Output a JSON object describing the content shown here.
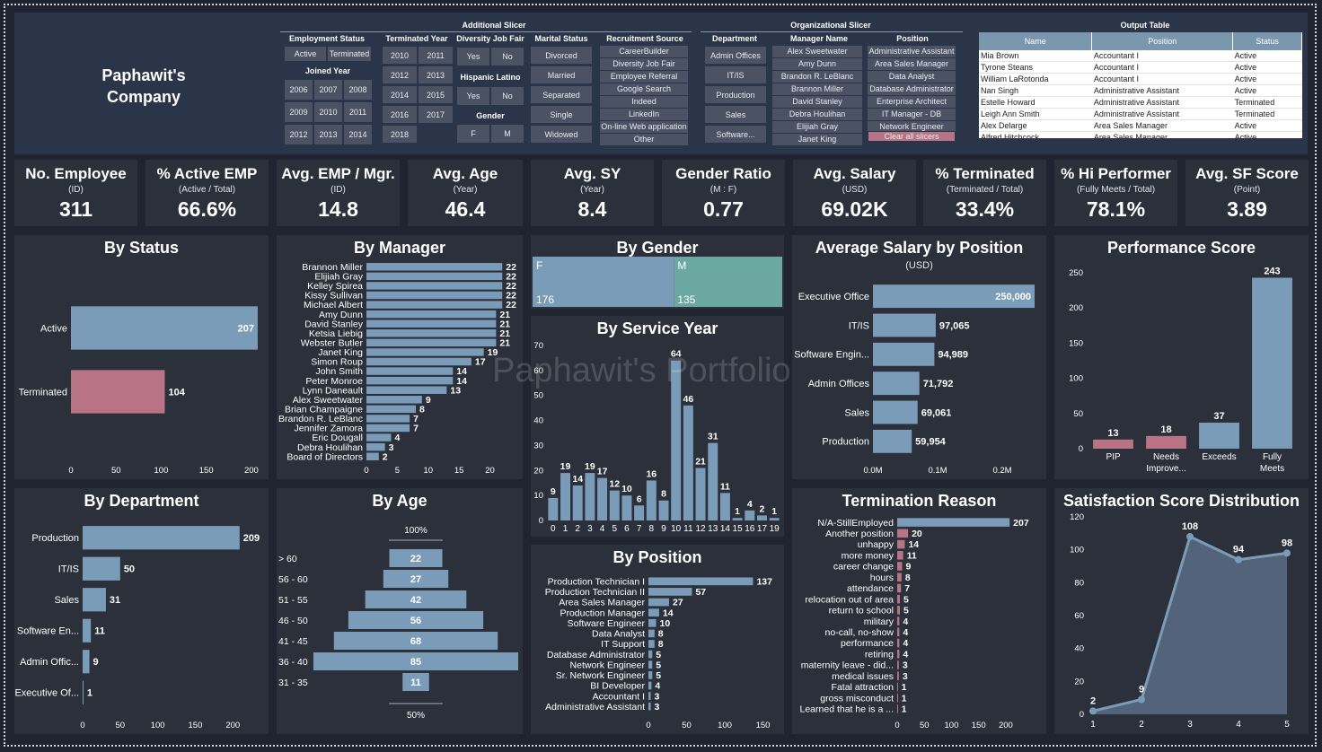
{
  "header": {
    "company": "Paphawit's Company",
    "additional_slicer_title": "Additional Slicer",
    "org_slicer_title": "Organizational Slicer",
    "output_table_title": "Output Table",
    "employment_status": {
      "title": "Employment Status",
      "options": [
        "Active",
        "Terminated"
      ]
    },
    "joined_year": {
      "title": "Joined Year",
      "options": [
        "2006",
        "2007",
        "2008",
        "2009",
        "2010",
        "2011",
        "2012",
        "2013",
        "2014"
      ]
    },
    "terminated_year": {
      "title": "Terminated Year",
      "options": [
        "2010",
        "2011",
        "2012",
        "2013",
        "2014",
        "2015",
        "2016",
        "2017",
        "2018"
      ]
    },
    "diversity_job_fair": {
      "title": "Diversity Job Fair",
      "options": [
        "Yes",
        "No"
      ]
    },
    "hispanic_latino": {
      "title": "Hispanic Latino",
      "options": [
        "Yes",
        "No"
      ]
    },
    "gender": {
      "title": "Gender",
      "options": [
        "F",
        "M"
      ]
    },
    "marital_status": {
      "title": "Marital Status",
      "options": [
        "Divorced",
        "Married",
        "Separated",
        "Single",
        "Widowed"
      ]
    },
    "recruitment_source": {
      "title": "Recruitment Source",
      "options": [
        "CareerBuilder",
        "Diversity Job Fair",
        "Employee Referral",
        "Google Search",
        "Indeed",
        "LinkedIn",
        "On-line Web application",
        "Other"
      ]
    },
    "department": {
      "title": "Department",
      "options": [
        "Admin Offices",
        "IT/IS",
        "Production",
        "Sales",
        "Software..."
      ]
    },
    "manager_name": {
      "title": "Manager Name",
      "options": [
        "Alex Sweetwater",
        "Amy Dunn",
        "Brandon R. LeBlanc",
        "Brannon Miller",
        "David Stanley",
        "Debra Houlihan",
        "Elijiah Gray",
        "Janet King"
      ]
    },
    "position": {
      "title": "Position",
      "options": [
        "Administrative Assistant",
        "Area Sales Manager",
        "Data Analyst",
        "Database Administrator",
        "Enterprise Architect",
        "IT Manager - DB",
        "Network Engineer"
      ],
      "clear_label": "Clear all slicers"
    },
    "output_table": {
      "columns": [
        "Name",
        "Position",
        "Status"
      ],
      "rows": [
        [
          "Mia Brown",
          "Accountant I",
          "Active"
        ],
        [
          "Tyrone Steans",
          "Accountant I",
          "Active"
        ],
        [
          "William LaRotonda",
          "Accountant I",
          "Active"
        ],
        [
          "Nan Singh",
          "Administrative Assistant",
          "Active"
        ],
        [
          "Estelle Howard",
          "Administrative Assistant",
          "Terminated"
        ],
        [
          "Leigh Ann Smith",
          "Administrative Assistant",
          "Terminated"
        ],
        [
          "Alex Delarge",
          "Area Sales Manager",
          "Active"
        ],
        [
          "Alfred Hitchcock",
          "Area Sales Manager",
          "Active"
        ]
      ]
    }
  },
  "kpis": [
    {
      "title": "No. Employee",
      "sub": "(ID)",
      "value": "311"
    },
    {
      "title": "% Active EMP",
      "sub": "(Active / Total)",
      "value": "66.6%"
    },
    {
      "title": "Avg. EMP / Mgr.",
      "sub": "(ID)",
      "value": "14.8"
    },
    {
      "title": "Avg. Age",
      "sub": "(Year)",
      "value": "46.4"
    },
    {
      "title": "Avg. SY",
      "sub": "(Year)",
      "value": "8.4"
    },
    {
      "title": "Gender Ratio",
      "sub": "(M : F)",
      "value": "0.77"
    },
    {
      "title": "Avg. Salary",
      "sub": "(USD)",
      "value": "69.02K"
    },
    {
      "title": "% Terminated",
      "sub": "(Terminated / Total)",
      "value": "33.4%"
    },
    {
      "title": "% Hi Performer",
      "sub": "(Fully Meets / Total)",
      "value": "78.1%"
    },
    {
      "title": "Avg. SF Score",
      "sub": "(Point)",
      "value": "3.89"
    }
  ],
  "watermark": "Paphawit's Portfolio",
  "colors": {
    "bar": "#7b9cb8",
    "pink": "#b87484",
    "teal": "#6ba8a2",
    "panel": "#2b303b"
  },
  "chart_data": [
    {
      "id": "status",
      "type": "bar",
      "orientation": "horizontal",
      "title": "By Status",
      "categories": [
        "Active",
        "Terminated"
      ],
      "values": [
        207,
        104
      ],
      "xlim": [
        0,
        220
      ],
      "xticks": [
        0,
        50,
        100,
        150,
        200
      ]
    },
    {
      "id": "manager",
      "type": "bar",
      "orientation": "horizontal",
      "title": "By Manager",
      "categories": [
        "Brannon Miller",
        "Elijiah Gray",
        "Kelley Spirea",
        "Kissy Sullivan",
        "Michael Albert",
        "Amy Dunn",
        "David Stanley",
        "Ketsia Liebig",
        "Webster Butler",
        "Janet King",
        "Simon Roup",
        "John Smith",
        "Peter Monroe",
        "Lynn Daneault",
        "Alex Sweetwater",
        "Brian Champaigne",
        "Brandon R. LeBlanc",
        "Jennifer Zamora",
        "Eric Dougall",
        "Debra Houlihan",
        "Board of Directors"
      ],
      "values": [
        22,
        22,
        22,
        22,
        22,
        21,
        21,
        21,
        21,
        19,
        17,
        14,
        14,
        13,
        9,
        8,
        7,
        7,
        4,
        3,
        2
      ],
      "xlim": [
        0,
        24
      ],
      "xticks": [
        0,
        5,
        10,
        15,
        20
      ]
    },
    {
      "id": "gender",
      "type": "area",
      "title": "By Gender",
      "categories": [
        "F",
        "M"
      ],
      "values": [
        176,
        135
      ]
    },
    {
      "id": "service_year",
      "type": "bar",
      "orientation": "vertical",
      "title": "By Service Year",
      "categories": [
        "0",
        "1",
        "2",
        "3",
        "4",
        "5",
        "6",
        "7",
        "8",
        "9",
        "10",
        "11",
        "12",
        "13",
        "14",
        "15",
        "16",
        "17",
        "19"
      ],
      "values": [
        9,
        19,
        14,
        19,
        17,
        12,
        10,
        6,
        16,
        8,
        64,
        46,
        21,
        31,
        11,
        1,
        4,
        2,
        1
      ],
      "ylim": [
        0,
        70
      ],
      "yticks": [
        0,
        10,
        20,
        30,
        40,
        50,
        60,
        70
      ]
    },
    {
      "id": "salary_position",
      "type": "bar",
      "orientation": "horizontal",
      "title": "Average Salary by Position",
      "subtitle": "(USD)",
      "categories": [
        "Executive Office",
        "IT/IS",
        "Software Engin...",
        "Admin Offices",
        "Sales",
        "Production"
      ],
      "values": [
        250000,
        97065,
        94989,
        71792,
        69061,
        59954
      ],
      "labels": [
        "250,000",
        "97,065",
        "94,989",
        "71,792",
        "69,061",
        "59,954"
      ],
      "xlim": [
        0,
        250000
      ],
      "xticks": [
        0,
        100000,
        200000
      ],
      "xticklabels": [
        "0.0M",
        "0.1M",
        "0.2M"
      ]
    },
    {
      "id": "performance",
      "type": "bar",
      "orientation": "vertical",
      "title": "Performance Score",
      "categories": [
        "PIP",
        "Needs Improve...",
        "Exceeds",
        "Fully Meets"
      ],
      "values": [
        13,
        18,
        37,
        243
      ],
      "ylim": [
        0,
        250
      ],
      "yticks": [
        0,
        50,
        100,
        150,
        200,
        250
      ]
    },
    {
      "id": "department",
      "type": "bar",
      "orientation": "horizontal",
      "title": "By Department",
      "categories": [
        "Production",
        "IT/IS",
        "Sales",
        "Software En...",
        "Admin Offic...",
        "Executive Of..."
      ],
      "values": [
        209,
        50,
        31,
        11,
        9,
        1
      ],
      "xlim": [
        0,
        220
      ],
      "xticks": [
        0,
        50,
        100,
        150,
        200
      ]
    },
    {
      "id": "age",
      "type": "bar",
      "orientation": "horizontal",
      "title": "By Age",
      "categories": [
        "> 60",
        "56 - 60",
        "51 - 55",
        "46 - 50",
        "41 - 45",
        "36 - 40",
        "31 - 35"
      ],
      "values": [
        22,
        27,
        42,
        56,
        68,
        85,
        11
      ],
      "top_label": "100%",
      "bottom_label": "50%"
    },
    {
      "id": "position",
      "type": "bar",
      "orientation": "horizontal",
      "title": "By Position",
      "categories": [
        "Production Technician I",
        "Production Technician II",
        "Area Sales Manager",
        "Production Manager",
        "Software Engineer",
        "Data Analyst",
        "IT Support",
        "Database Administrator",
        "Network Engineer",
        "Sr. Network Engineer",
        "BI Developer",
        "Accountant I",
        "Administrative Assistant"
      ],
      "values": [
        137,
        57,
        27,
        14,
        10,
        8,
        8,
        5,
        5,
        5,
        4,
        3,
        3
      ],
      "xlim": [
        0,
        160
      ],
      "xticks": [
        0,
        50,
        100,
        150
      ]
    },
    {
      "id": "termination",
      "type": "bar",
      "orientation": "horizontal",
      "title": "Termination Reason",
      "categories": [
        "N/A-StillEmployed",
        "Another position",
        "unhappy",
        "more money",
        "career change",
        "hours",
        "attendance",
        "relocation out of area",
        "return to school",
        "military",
        "no-call, no-show",
        "performance",
        "retiring",
        "maternity leave - did...",
        "medical issues",
        "Fatal attraction",
        "gross misconduct",
        "Learned that he is a ..."
      ],
      "values": [
        207,
        20,
        14,
        11,
        9,
        8,
        7,
        5,
        5,
        4,
        4,
        4,
        4,
        3,
        3,
        1,
        1,
        1
      ],
      "xlim": [
        0,
        220
      ],
      "xticks": [
        0,
        50,
        100,
        150,
        200
      ]
    },
    {
      "id": "satisfaction",
      "type": "area",
      "title": "Satisfaction Score Distribution",
      "x": [
        1,
        2,
        3,
        4,
        5
      ],
      "values": [
        2,
        9,
        108,
        94,
        98
      ],
      "ylim": [
        0,
        120
      ],
      "yticks": [
        0,
        20,
        40,
        60,
        80,
        100,
        120
      ]
    }
  ]
}
